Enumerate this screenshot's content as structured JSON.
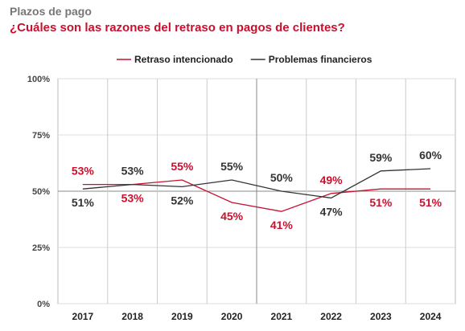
{
  "header": {
    "title": "Plazos de pago",
    "subtitle": "¿Cuáles son las razones del retraso en pagos de clientes?"
  },
  "chart_data": {
    "type": "line",
    "categories": [
      "2017",
      "2018",
      "2019",
      "2020",
      "2021",
      "2022",
      "2023",
      "2024"
    ],
    "series": [
      {
        "name": "Retraso intencionado",
        "color": "#c8102e",
        "values": [
          53,
          53,
          55,
          45,
          41,
          49,
          51,
          51
        ]
      },
      {
        "name": "Problemas financieros",
        "color": "#333333",
        "values": [
          51,
          53,
          52,
          55,
          50,
          47,
          59,
          60
        ]
      }
    ],
    "value_labels": {
      "Retraso intencionado": [
        "53%",
        "53%",
        "55%",
        "45%",
        "41%",
        "49%",
        "51%",
        "51%"
      ],
      "Problemas financieros": [
        "51%",
        "53%",
        "52%",
        "55%",
        "50%",
        "47%",
        "59%",
        "60%"
      ]
    },
    "y_ticks": [
      "0%",
      "25%",
      "50%",
      "75%",
      "100%"
    ],
    "ylim": [
      0,
      100
    ],
    "legend_position": "top-center",
    "grid": true
  }
}
